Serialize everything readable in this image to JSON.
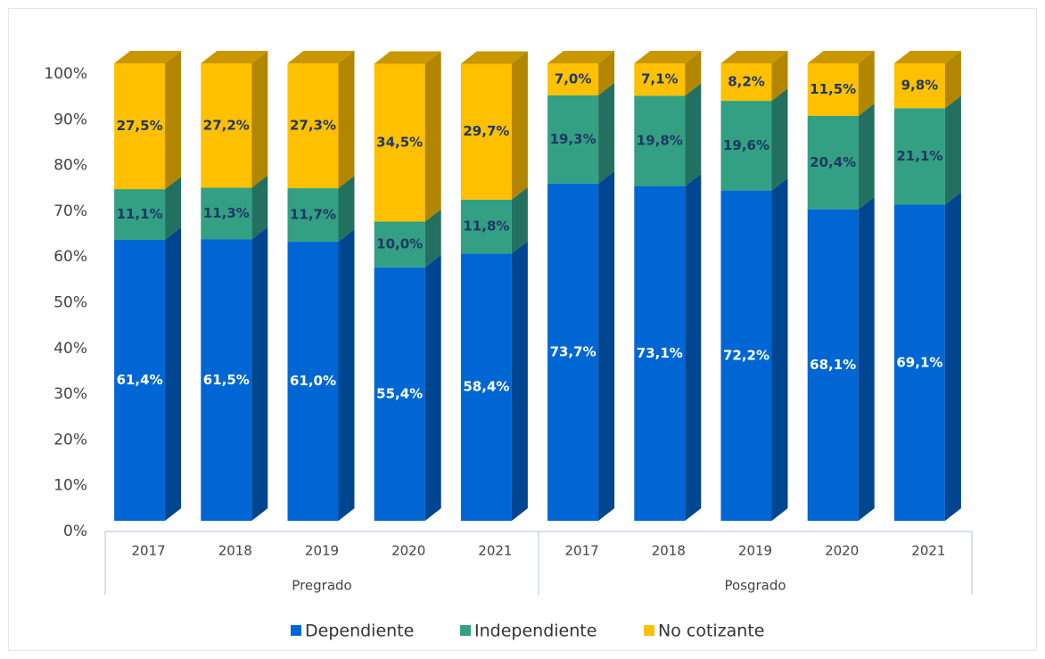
{
  "chart_data": {
    "type": "bar3d_stacked",
    "categories": [
      "2017",
      "2018",
      "2019",
      "2020",
      "2021",
      "2017",
      "2018",
      "2019",
      "2020",
      "2021"
    ],
    "groups": [
      {
        "label": "Pregrado",
        "count": 5
      },
      {
        "label": "Posgrado",
        "count": 5
      }
    ],
    "series": [
      {
        "name": "Dependiente",
        "color": "#0066d4",
        "side_color": "#00458f",
        "values": [
          61.4,
          61.5,
          61.0,
          55.4,
          58.4,
          73.7,
          73.1,
          72.2,
          68.1,
          69.1
        ],
        "value_labels": [
          "61,4%",
          "61,5%",
          "61,0%",
          "55,4%",
          "58,4%",
          "73,7%",
          "73,1%",
          "72,2%",
          "68,1%",
          "69,1%"
        ]
      },
      {
        "name": "Independiente",
        "color": "#33a083",
        "side_color": "#237060",
        "values": [
          11.1,
          11.3,
          11.7,
          10.0,
          11.8,
          19.3,
          19.8,
          19.6,
          20.4,
          21.1
        ],
        "value_labels": [
          "11,1%",
          "11,3%",
          "11,7%",
          "10,0%",
          "11,8%",
          "19,3%",
          "19,8%",
          "19,6%",
          "20,4%",
          "21,1%"
        ]
      },
      {
        "name": "No cotizante",
        "color": "#ffc000",
        "side_color": "#b38600",
        "top_color": "#c99700",
        "values": [
          27.5,
          27.2,
          27.3,
          34.5,
          29.7,
          7.0,
          7.1,
          8.2,
          11.5,
          9.8
        ],
        "value_labels": [
          "27,5%",
          "27,2%",
          "27,3%",
          "34,5%",
          "29,7%",
          "7,0%",
          "7,1%",
          "8,2%",
          "11,5%",
          "9,8%"
        ]
      }
    ],
    "ylim": [
      0,
      100
    ],
    "yticks": [
      {
        "value": 0,
        "label": "0%"
      },
      {
        "value": 10,
        "label": "10%"
      },
      {
        "value": 20,
        "label": "20%"
      },
      {
        "value": 30,
        "label": "30%"
      },
      {
        "value": 40,
        "label": "40%"
      },
      {
        "value": 50,
        "label": "50%"
      },
      {
        "value": 60,
        "label": "60%"
      },
      {
        "value": 70,
        "label": "70%"
      },
      {
        "value": 80,
        "label": "80%"
      },
      {
        "value": 90,
        "label": "90%"
      },
      {
        "value": 100,
        "label": "100%"
      }
    ],
    "legend": "bottom"
  }
}
